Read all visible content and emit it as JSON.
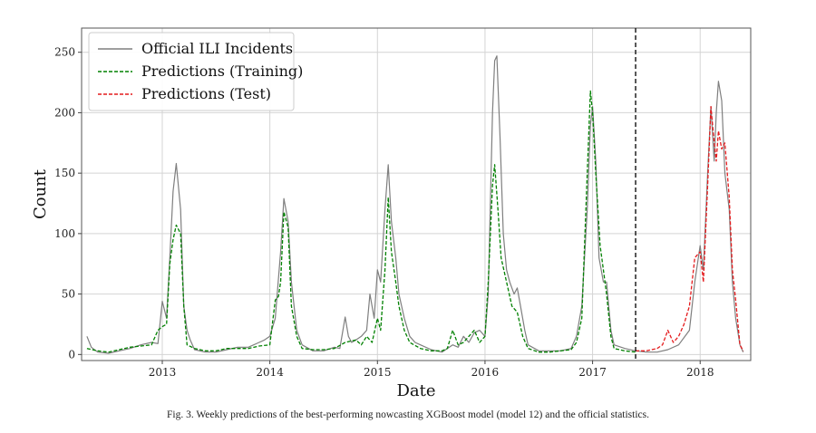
{
  "caption": "Fig. 3.  Weekly predictions of the best-performing nowcasting XGBoost model (model 12) and the official statistics.",
  "chart_data": {
    "type": "line",
    "xlabel": "Date",
    "ylabel": "Count",
    "x_ticks": [
      "2013",
      "2014",
      "2015",
      "2016",
      "2017",
      "2018"
    ],
    "y_ticks": [
      0,
      50,
      100,
      150,
      200,
      250
    ],
    "xlim": [
      2012.25,
      2018.47
    ],
    "ylim": [
      -5,
      270
    ],
    "grid": true,
    "legend_position": "top-left",
    "vline": {
      "x": 2017.4,
      "style": "dashed",
      "color": "#111111"
    },
    "series": [
      {
        "name": "Official ILI Incidents",
        "color": "#7f7f7f",
        "style": "solid",
        "points": [
          [
            2012.3,
            15
          ],
          [
            2012.34,
            6
          ],
          [
            2012.4,
            2
          ],
          [
            2012.5,
            1
          ],
          [
            2012.6,
            3
          ],
          [
            2012.7,
            5
          ],
          [
            2012.8,
            8
          ],
          [
            2012.9,
            10
          ],
          [
            2012.96,
            9
          ],
          [
            2013.0,
            44
          ],
          [
            2013.04,
            30
          ],
          [
            2013.07,
            80
          ],
          [
            2013.1,
            135
          ],
          [
            2013.13,
            158
          ],
          [
            2013.17,
            120
          ],
          [
            2013.2,
            40
          ],
          [
            2013.23,
            20
          ],
          [
            2013.26,
            12
          ],
          [
            2013.3,
            4
          ],
          [
            2013.4,
            2
          ],
          [
            2013.5,
            2
          ],
          [
            2013.6,
            4
          ],
          [
            2013.7,
            6
          ],
          [
            2013.8,
            6
          ],
          [
            2013.9,
            10
          ],
          [
            2013.95,
            12
          ],
          [
            2014.0,
            15
          ],
          [
            2014.05,
            30
          ],
          [
            2014.1,
            85
          ],
          [
            2014.13,
            129
          ],
          [
            2014.17,
            110
          ],
          [
            2014.2,
            60
          ],
          [
            2014.25,
            20
          ],
          [
            2014.3,
            8
          ],
          [
            2014.4,
            3
          ],
          [
            2014.5,
            3
          ],
          [
            2014.6,
            6
          ],
          [
            2014.65,
            5
          ],
          [
            2014.7,
            31
          ],
          [
            2014.73,
            15
          ],
          [
            2014.76,
            10
          ],
          [
            2014.8,
            12
          ],
          [
            2014.85,
            15
          ],
          [
            2014.9,
            20
          ],
          [
            2014.93,
            50
          ],
          [
            2014.97,
            30
          ],
          [
            2015.0,
            70
          ],
          [
            2015.03,
            60
          ],
          [
            2015.07,
            120
          ],
          [
            2015.1,
            157
          ],
          [
            2015.13,
            110
          ],
          [
            2015.17,
            80
          ],
          [
            2015.2,
            50
          ],
          [
            2015.25,
            30
          ],
          [
            2015.3,
            15
          ],
          [
            2015.35,
            10
          ],
          [
            2015.4,
            8
          ],
          [
            2015.5,
            4
          ],
          [
            2015.6,
            2
          ],
          [
            2015.7,
            8
          ],
          [
            2015.75,
            6
          ],
          [
            2015.8,
            15
          ],
          [
            2015.85,
            10
          ],
          [
            2015.9,
            18
          ],
          [
            2015.95,
            20
          ],
          [
            2016.0,
            15
          ],
          [
            2016.03,
            50
          ],
          [
            2016.07,
            200
          ],
          [
            2016.09,
            243
          ],
          [
            2016.11,
            247
          ],
          [
            2016.14,
            180
          ],
          [
            2016.17,
            100
          ],
          [
            2016.2,
            70
          ],
          [
            2016.23,
            60
          ],
          [
            2016.27,
            50
          ],
          [
            2016.3,
            55
          ],
          [
            2016.33,
            40
          ],
          [
            2016.37,
            20
          ],
          [
            2016.4,
            8
          ],
          [
            2016.5,
            3
          ],
          [
            2016.6,
            3
          ],
          [
            2016.7,
            3
          ],
          [
            2016.8,
            5
          ],
          [
            2016.85,
            15
          ],
          [
            2016.9,
            40
          ],
          [
            2016.95,
            120
          ],
          [
            2016.98,
            190
          ],
          [
            2017.0,
            205
          ],
          [
            2017.03,
            160
          ],
          [
            2017.06,
            80
          ],
          [
            2017.1,
            60
          ],
          [
            2017.13,
            60
          ],
          [
            2017.17,
            20
          ],
          [
            2017.2,
            8
          ],
          [
            2017.3,
            5
          ],
          [
            2017.4,
            3
          ],
          [
            2017.5,
            2
          ],
          [
            2017.6,
            2
          ],
          [
            2017.7,
            4
          ],
          [
            2017.8,
            8
          ],
          [
            2017.9,
            20
          ],
          [
            2017.95,
            60
          ],
          [
            2018.0,
            90
          ],
          [
            2018.03,
            70
          ],
          [
            2018.07,
            150
          ],
          [
            2018.1,
            205
          ],
          [
            2018.13,
            160
          ],
          [
            2018.15,
            200
          ],
          [
            2018.17,
            226
          ],
          [
            2018.2,
            210
          ],
          [
            2018.23,
            150
          ],
          [
            2018.27,
            120
          ],
          [
            2018.3,
            60
          ],
          [
            2018.33,
            30
          ],
          [
            2018.37,
            8
          ],
          [
            2018.4,
            2
          ]
        ]
      },
      {
        "name": "Predictions (Training)",
        "color": "#008000",
        "style": "dashed",
        "points": [
          [
            2012.3,
            5
          ],
          [
            2012.4,
            3
          ],
          [
            2012.5,
            2
          ],
          [
            2012.6,
            4
          ],
          [
            2012.7,
            6
          ],
          [
            2012.8,
            7
          ],
          [
            2012.9,
            8
          ],
          [
            2012.96,
            20
          ],
          [
            2013.0,
            23
          ],
          [
            2013.04,
            25
          ],
          [
            2013.07,
            75
          ],
          [
            2013.1,
            95
          ],
          [
            2013.13,
            107
          ],
          [
            2013.17,
            100
          ],
          [
            2013.2,
            40
          ],
          [
            2013.23,
            8
          ],
          [
            2013.3,
            5
          ],
          [
            2013.4,
            3
          ],
          [
            2013.5,
            3
          ],
          [
            2013.6,
            5
          ],
          [
            2013.7,
            5
          ],
          [
            2013.8,
            5
          ],
          [
            2013.9,
            7
          ],
          [
            2014.0,
            8
          ],
          [
            2014.05,
            45
          ],
          [
            2014.08,
            48
          ],
          [
            2014.1,
            60
          ],
          [
            2014.13,
            118
          ],
          [
            2014.17,
            105
          ],
          [
            2014.2,
            40
          ],
          [
            2014.25,
            15
          ],
          [
            2014.3,
            5
          ],
          [
            2014.4,
            4
          ],
          [
            2014.5,
            4
          ],
          [
            2014.6,
            5
          ],
          [
            2014.7,
            10
          ],
          [
            2014.8,
            12
          ],
          [
            2014.85,
            8
          ],
          [
            2014.9,
            15
          ],
          [
            2014.95,
            10
          ],
          [
            2015.0,
            30
          ],
          [
            2015.03,
            20
          ],
          [
            2015.07,
            70
          ],
          [
            2015.1,
            130
          ],
          [
            2015.13,
            85
          ],
          [
            2015.17,
            60
          ],
          [
            2015.2,
            40
          ],
          [
            2015.25,
            20
          ],
          [
            2015.3,
            10
          ],
          [
            2015.4,
            5
          ],
          [
            2015.5,
            3
          ],
          [
            2015.6,
            3
          ],
          [
            2015.65,
            5
          ],
          [
            2015.7,
            20
          ],
          [
            2015.75,
            8
          ],
          [
            2015.8,
            10
          ],
          [
            2015.85,
            15
          ],
          [
            2015.9,
            20
          ],
          [
            2015.95,
            10
          ],
          [
            2016.0,
            15
          ],
          [
            2016.03,
            60
          ],
          [
            2016.07,
            140
          ],
          [
            2016.09,
            157
          ],
          [
            2016.12,
            120
          ],
          [
            2016.15,
            80
          ],
          [
            2016.2,
            60
          ],
          [
            2016.25,
            40
          ],
          [
            2016.3,
            35
          ],
          [
            2016.35,
            15
          ],
          [
            2016.4,
            5
          ],
          [
            2016.5,
            2
          ],
          [
            2016.6,
            2
          ],
          [
            2016.7,
            3
          ],
          [
            2016.8,
            4
          ],
          [
            2016.85,
            10
          ],
          [
            2016.9,
            30
          ],
          [
            2016.95,
            150
          ],
          [
            2016.98,
            218
          ],
          [
            2017.0,
            200
          ],
          [
            2017.03,
            150
          ],
          [
            2017.07,
            90
          ],
          [
            2017.1,
            70
          ],
          [
            2017.13,
            50
          ],
          [
            2017.17,
            15
          ],
          [
            2017.2,
            5
          ],
          [
            2017.3,
            3
          ],
          [
            2017.4,
            2
          ]
        ]
      },
      {
        "name": "Predictions (Test)",
        "color": "#e41a1c",
        "style": "dashed",
        "points": [
          [
            2017.4,
            3
          ],
          [
            2017.5,
            3
          ],
          [
            2017.6,
            5
          ],
          [
            2017.65,
            8
          ],
          [
            2017.7,
            20
          ],
          [
            2017.75,
            10
          ],
          [
            2017.8,
            15
          ],
          [
            2017.85,
            25
          ],
          [
            2017.9,
            40
          ],
          [
            2017.95,
            80
          ],
          [
            2018.0,
            85
          ],
          [
            2018.03,
            60
          ],
          [
            2018.07,
            140
          ],
          [
            2018.1,
            205
          ],
          [
            2018.12,
            185
          ],
          [
            2018.15,
            160
          ],
          [
            2018.17,
            185
          ],
          [
            2018.2,
            170
          ],
          [
            2018.23,
            175
          ],
          [
            2018.27,
            130
          ],
          [
            2018.3,
            70
          ],
          [
            2018.33,
            45
          ],
          [
            2018.37,
            8
          ],
          [
            2018.4,
            3
          ]
        ]
      }
    ]
  }
}
